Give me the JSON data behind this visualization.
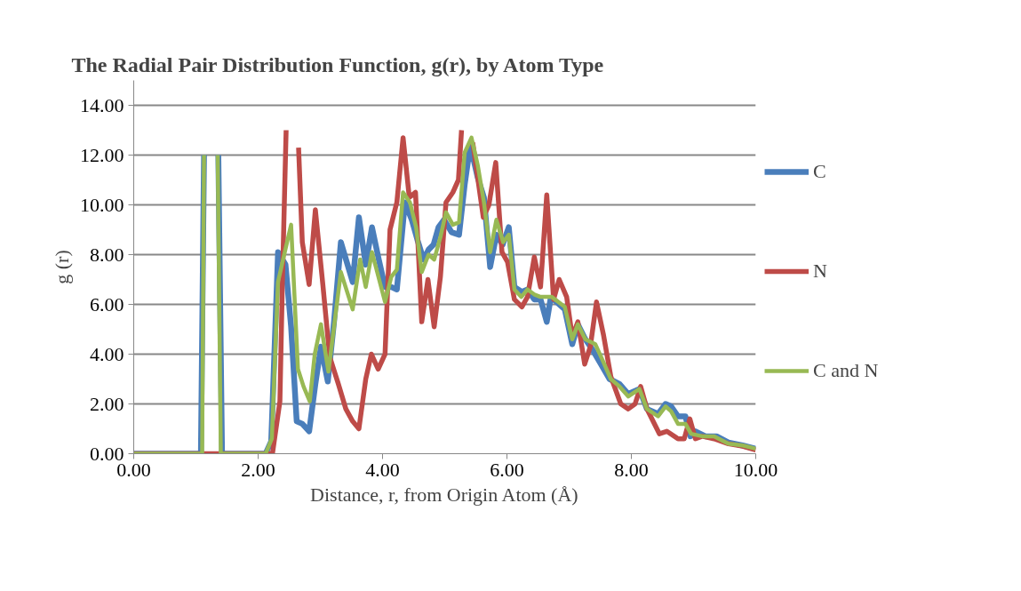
{
  "chart_data": {
    "type": "line",
    "title": "The Radial Pair Distribution Function, g(r), by Atom Type",
    "xlabel": "Distance, r, from Origin Atom (Å)",
    "ylabel": "g (r)",
    "xlim": [
      0,
      10
    ],
    "ylim": [
      0,
      15
    ],
    "xticks": [
      {
        "value": 0,
        "label": "0.00"
      },
      {
        "value": 2,
        "label": "2.00"
      },
      {
        "value": 4,
        "label": "4.00"
      },
      {
        "value": 6,
        "label": "6.00"
      },
      {
        "value": 8,
        "label": "8.00"
      },
      {
        "value": 10,
        "label": "10.00"
      }
    ],
    "yticks": [
      {
        "value": 0,
        "label": "0.00"
      },
      {
        "value": 2,
        "label": "2.00"
      },
      {
        "value": 4,
        "label": "4.00"
      },
      {
        "value": 6,
        "label": "6.00"
      },
      {
        "value": 8,
        "label": "8.00"
      },
      {
        "value": 10,
        "label": "10.00"
      },
      {
        "value": 12,
        "label": "12.00"
      },
      {
        "value": 14,
        "label": "14.00"
      }
    ],
    "grid": "y",
    "legend": "right",
    "marker": "none",
    "line_style": "solid",
    "series": [
      {
        "name": "C",
        "color": "#4a7ebb",
        "x": [
          0,
          1.08,
          1.13,
          1.14,
          1.33,
          1.36,
          1.42,
          2.12,
          2.21,
          2.32,
          2.44,
          2.53,
          2.62,
          2.71,
          2.82,
          2.92,
          3.01,
          3.12,
          3.22,
          3.33,
          3.52,
          3.62,
          3.73,
          3.83,
          3.94,
          4.04,
          4.14,
          4.23,
          4.36,
          4.47,
          4.56,
          4.66,
          4.74,
          4.82,
          4.9,
          4.99,
          5.11,
          5.23,
          5.32,
          5.41,
          5.53,
          5.63,
          5.73,
          5.83,
          5.93,
          6.03,
          6.12,
          6.24,
          6.33,
          6.44,
          6.54,
          6.64,
          6.7,
          6.75,
          6.93,
          7.05,
          7.14,
          7.26,
          7.37,
          7.51,
          7.65,
          7.81,
          7.95,
          8.13,
          8.25,
          8.43,
          8.55,
          8.64,
          8.75,
          8.87,
          8.95,
          9.03,
          9.19,
          9.37,
          9.56,
          9.79,
          10.0
        ],
        "values": [
          0,
          0,
          12,
          null,
          null,
          12,
          0,
          0,
          0.5,
          8.1,
          7.6,
          5.1,
          1.3,
          1.2,
          0.9,
          2.8,
          4.3,
          2.9,
          5.3,
          8.5,
          6.9,
          9.5,
          7.6,
          9.1,
          7.8,
          6.7,
          6.7,
          6.6,
          10.1,
          9.4,
          8.6,
          7.8,
          8.2,
          8.4,
          9.1,
          9.4,
          8.9,
          8.8,
          10.8,
          12.4,
          11.1,
          10.3,
          7.5,
          8.8,
          8.4,
          9.1,
          6.7,
          6.5,
          6.6,
          6.2,
          6.2,
          5.3,
          6.2,
          6.2,
          5.8,
          4.4,
          5.2,
          4.6,
          4.2,
          3.6,
          3.0,
          2.8,
          2.4,
          2.6,
          1.8,
          1.6,
          2.0,
          1.9,
          1.5,
          1.5,
          0.7,
          0.9,
          0.7,
          0.7,
          0.45,
          0.33,
          0.2
        ]
      },
      {
        "name": "N",
        "color": "#be4b48",
        "x": [
          0,
          2.23,
          2.35,
          2.39,
          2.45,
          2.47,
          2.59,
          2.65,
          2.71,
          2.82,
          2.92,
          3.04,
          3.15,
          3.29,
          3.41,
          3.52,
          3.62,
          3.73,
          3.82,
          3.93,
          4.04,
          4.12,
          4.23,
          4.33,
          4.43,
          4.53,
          4.63,
          4.73,
          4.83,
          4.93,
          5.02,
          5.13,
          5.22,
          5.27,
          5.28,
          5.39,
          5.45,
          5.62,
          5.71,
          5.82,
          5.92,
          6.01,
          6.12,
          6.24,
          6.33,
          6.44,
          6.54,
          6.64,
          6.75,
          6.84,
          6.96,
          7.05,
          7.14,
          7.25,
          7.34,
          7.44,
          7.55,
          7.67,
          7.83,
          7.95,
          8.06,
          8.15,
          8.25,
          8.45,
          8.57,
          8.75,
          8.85,
          8.94,
          9.03,
          9.14,
          9.33,
          9.56,
          9.79,
          10.0
        ],
        "values": [
          0,
          0,
          2.1,
          6.9,
          13,
          null,
          null,
          12.3,
          8.5,
          6.8,
          9.8,
          6.8,
          3.9,
          2.8,
          1.8,
          1.3,
          1.0,
          3.0,
          4.0,
          3.4,
          4.0,
          9.0,
          10.1,
          12.7,
          10.3,
          10.5,
          5.3,
          7.0,
          5.1,
          7.1,
          10.1,
          10.5,
          11.0,
          13,
          null,
          null,
          12.5,
          9.5,
          10.0,
          11.7,
          8.1,
          7.7,
          6.2,
          5.9,
          6.3,
          7.9,
          6.7,
          10.4,
          6.2,
          7.0,
          6.3,
          4.7,
          5.3,
          3.6,
          4.3,
          6.1,
          4.8,
          3.1,
          2.0,
          1.8,
          2.0,
          2.7,
          1.8,
          0.8,
          0.9,
          0.6,
          0.6,
          1.4,
          0.6,
          0.7,
          0.6,
          0.4,
          0.3,
          0.15
        ]
      },
      {
        "name": "C and N",
        "color": "#98b954",
        "x": [
          0,
          1.1,
          1.13,
          1.14,
          1.32,
          1.35,
          1.4,
          2.12,
          2.22,
          2.32,
          2.41,
          2.53,
          2.64,
          2.73,
          2.83,
          2.91,
          3.01,
          3.13,
          3.33,
          3.52,
          3.64,
          3.73,
          3.83,
          4.04,
          4.14,
          4.23,
          4.33,
          4.44,
          4.54,
          4.63,
          4.74,
          4.83,
          4.93,
          5.02,
          5.13,
          5.23,
          5.32,
          5.43,
          5.53,
          5.63,
          5.73,
          5.83,
          5.94,
          6.03,
          6.12,
          6.23,
          6.33,
          6.44,
          6.54,
          6.72,
          6.93,
          7.05,
          7.14,
          7.26,
          7.42,
          7.53,
          7.67,
          7.81,
          7.95,
          8.13,
          8.25,
          8.43,
          8.55,
          8.64,
          8.75,
          8.87,
          8.96,
          9.14,
          9.33,
          9.56,
          9.79,
          10.0
        ],
        "values": [
          0,
          0,
          12,
          null,
          null,
          12,
          0,
          0,
          0.6,
          6.9,
          7.9,
          9.2,
          3.4,
          2.7,
          2.1,
          4.0,
          5.2,
          3.3,
          7.3,
          5.8,
          7.8,
          6.7,
          8.1,
          6.1,
          7.1,
          7.4,
          10.5,
          10.1,
          9.1,
          7.3,
          8.0,
          7.8,
          8.7,
          9.7,
          9.2,
          9.3,
          12.1,
          12.7,
          11.6,
          10.1,
          8.1,
          9.4,
          8.5,
          8.8,
          6.6,
          6.3,
          6.6,
          6.4,
          6.3,
          6.3,
          5.9,
          4.6,
          5.2,
          4.6,
          4.4,
          3.8,
          3.0,
          2.7,
          2.3,
          2.6,
          1.8,
          1.5,
          1.9,
          1.7,
          1.2,
          1.2,
          0.8,
          0.7,
          0.7,
          0.4,
          0.33,
          0.2
        ]
      }
    ]
  }
}
